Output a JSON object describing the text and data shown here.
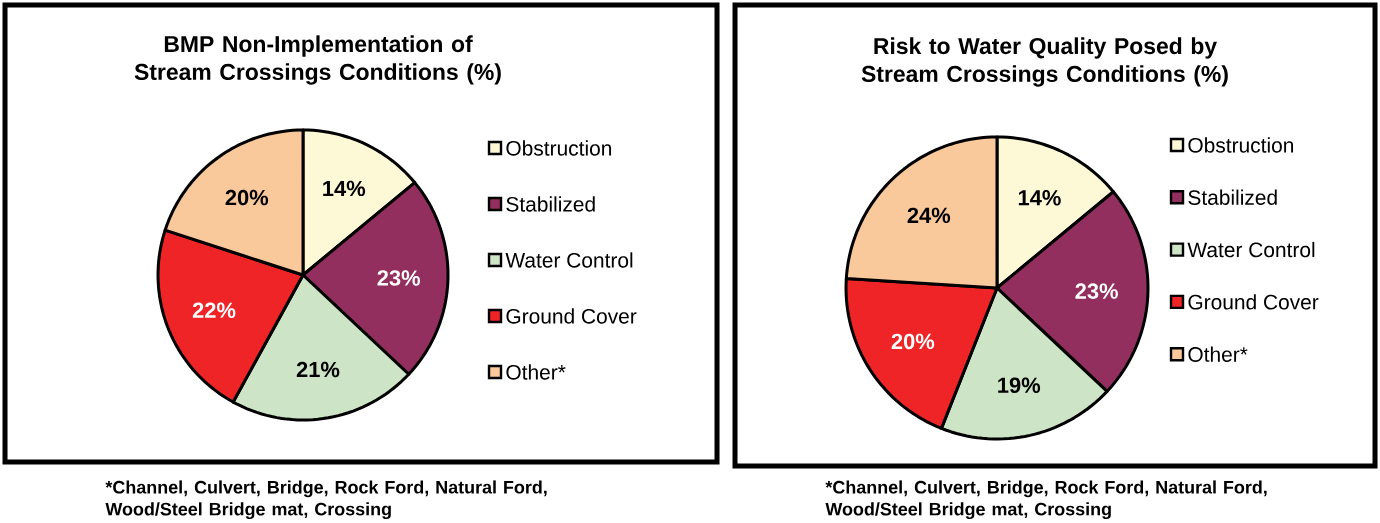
{
  "chart_data": [
    {
      "type": "pie",
      "title": "BMP Non-Implementation of Stream Crossings Conditions (%)",
      "categories": [
        "Obstruction",
        "Stabilized",
        "Water Control",
        "Ground Cover",
        "Other*"
      ],
      "values": [
        14,
        23,
        21,
        22,
        20
      ],
      "value_labels": [
        "14%",
        "23%",
        "21%",
        "22%",
        "20%"
      ],
      "colors": [
        "#fdf9d7",
        "#932f5e",
        "#cde5c6",
        "#ee2426",
        "#f9c89b"
      ],
      "legend": "right",
      "annotations": [
        "*Channel, Culvert, Bridge, Rock Ford, Natural Ford, Wood/Steel Bridge mat, Crossing"
      ]
    },
    {
      "type": "pie",
      "title": "Risk to Water Quality Posed by Stream Crossings Conditions (%)",
      "categories": [
        "Obstruction",
        "Stabilized",
        "Water Control",
        "Ground Cover",
        "Other*"
      ],
      "values": [
        14,
        23,
        19,
        20,
        24
      ],
      "value_labels": [
        "14%",
        "23%",
        "19%",
        "20%",
        "24%"
      ],
      "colors": [
        "#fdf9d7",
        "#932f5e",
        "#cde5c6",
        "#ee2426",
        "#f9c89b"
      ],
      "legend": "right",
      "annotations": [
        "*Channel, Culvert, Bridge, Rock Ford, Natural Ford, Wood/Steel Bridge mat, Crossing"
      ]
    }
  ]
}
